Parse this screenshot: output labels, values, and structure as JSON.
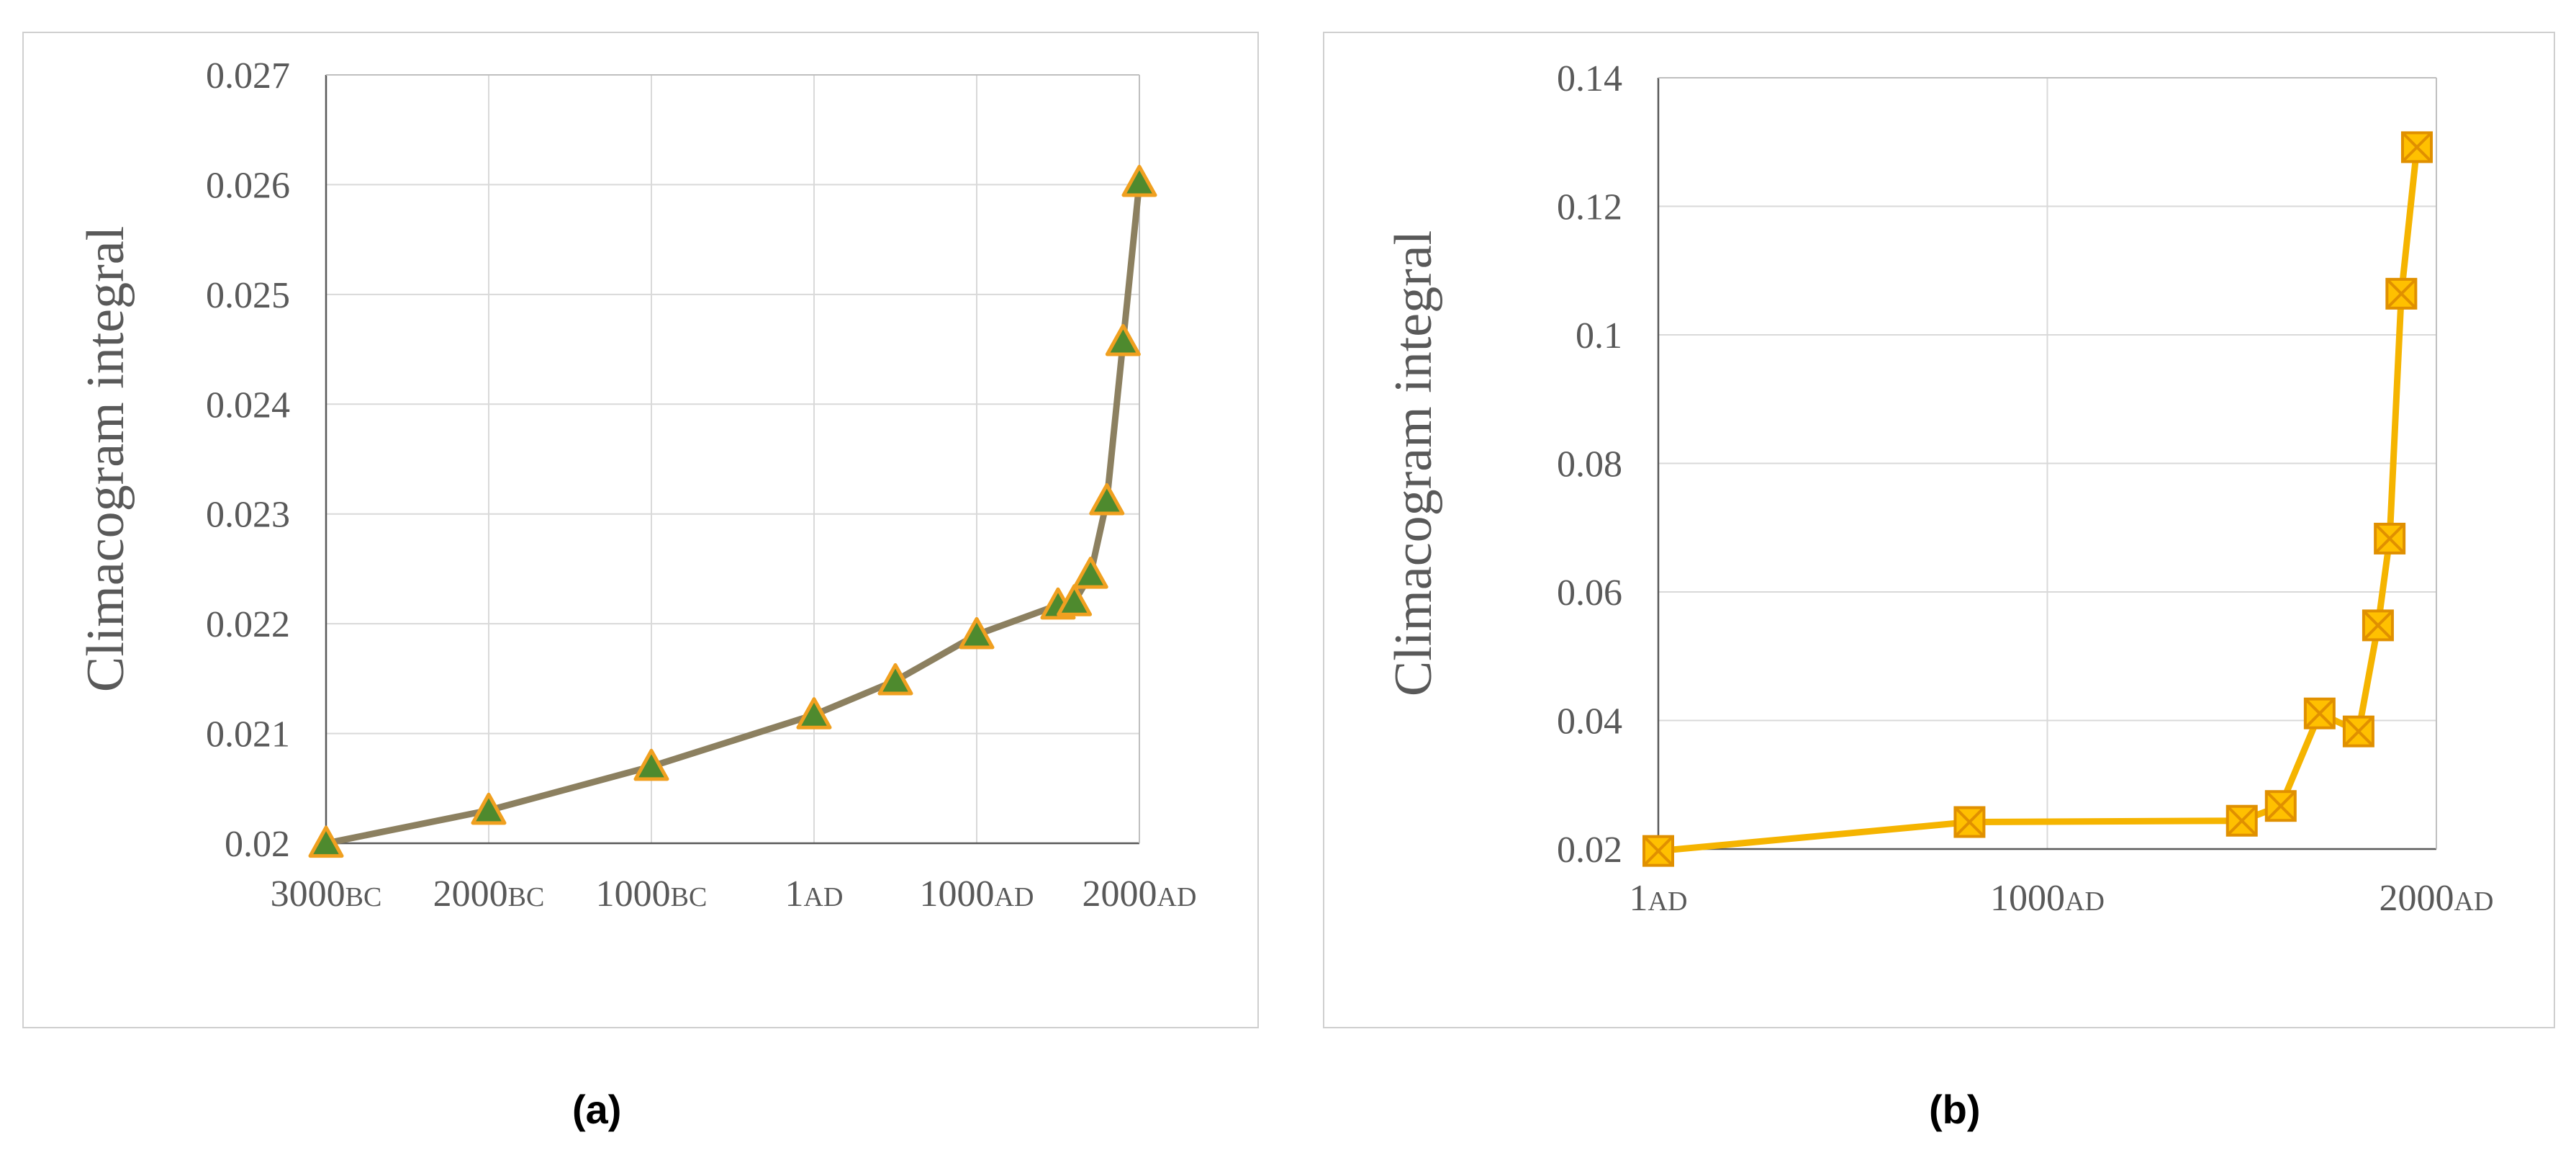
{
  "captions": {
    "a": "(a)",
    "b": "(b)"
  },
  "chart_data": [
    {
      "id": "a",
      "type": "line",
      "ylabel": "Climacogram integral",
      "ylim": [
        0.02,
        0.027
      ],
      "yticks": [
        0.02,
        0.021,
        0.022,
        0.023,
        0.024,
        0.025,
        0.026,
        0.027
      ],
      "ytick_labels": [
        "0.02",
        "0.021",
        "0.022",
        "0.023",
        "0.024",
        "0.025",
        "0.026",
        "0.027"
      ],
      "xlim": [
        -3000,
        2000
      ],
      "xticks": [
        {
          "value": -3000,
          "num": "3000",
          "era": "BC"
        },
        {
          "value": -2000,
          "num": "2000",
          "era": "BC"
        },
        {
          "value": -1000,
          "num": "1000",
          "era": "BC"
        },
        {
          "value": 0,
          "num": "1",
          "era": "AD"
        },
        {
          "value": 1000,
          "num": "1000",
          "era": "AD"
        },
        {
          "value": 2000,
          "num": "2000",
          "era": "AD"
        }
      ],
      "grid": true,
      "line_color": "#8c8060",
      "marker": "triangle",
      "marker_fill": "#4e8a2e",
      "marker_edge": "#f0a020",
      "series": [
        {
          "x": [
            -3000,
            -2000,
            -1000,
            0,
            500,
            1000,
            1500,
            1600,
            1700,
            1800,
            1900,
            2000
          ],
          "y": [
            0.02,
            0.0203,
            0.0207,
            0.02117,
            0.02148,
            0.0219,
            0.02217,
            0.0222,
            0.02245,
            0.02312,
            0.02457,
            0.02602
          ]
        }
      ]
    },
    {
      "id": "b",
      "type": "line",
      "ylabel": "Climacogram integral",
      "ylim": [
        0.02,
        0.14
      ],
      "yticks": [
        0.02,
        0.04,
        0.06,
        0.08,
        0.1,
        0.12,
        0.14
      ],
      "ytick_labels": [
        "0.02",
        "0.04",
        "0.06",
        "0.08",
        "0.1",
        "0.12",
        "0.14"
      ],
      "xlim": [
        0,
        2000
      ],
      "xticks": [
        {
          "value": 0,
          "num": "1",
          "era": "AD"
        },
        {
          "value": 1000,
          "num": "1000",
          "era": "AD"
        },
        {
          "value": 2000,
          "num": "2000",
          "era": "AD"
        }
      ],
      "grid": true,
      "line_color": "#f5b400",
      "marker": "square-x",
      "marker_fill": "#ffc000",
      "marker_edge": "#e09000",
      "series": [
        {
          "x": [
            0,
            800,
            1500,
            1600,
            1700,
            1800,
            1850,
            1880,
            1910,
            1950
          ],
          "y": [
            0.0197,
            0.0242,
            0.0244,
            0.0267,
            0.0411,
            0.0383,
            0.0548,
            0.0683,
            0.1064,
            0.1292
          ]
        }
      ]
    }
  ]
}
